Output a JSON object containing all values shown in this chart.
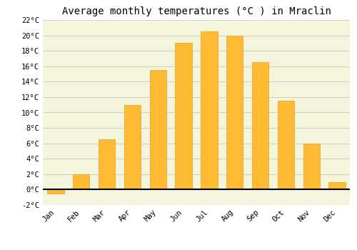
{
  "title": "Average monthly temperatures (°C ) in Mraclin",
  "months": [
    "Jan",
    "Feb",
    "Mar",
    "Apr",
    "May",
    "Jun",
    "Jul",
    "Aug",
    "Sep",
    "Oct",
    "Nov",
    "Dec"
  ],
  "values": [
    -0.5,
    2.0,
    6.5,
    11.0,
    15.5,
    19.0,
    20.5,
    20.0,
    16.5,
    11.5,
    6.0,
    1.0
  ],
  "bar_color": "#FFBB33",
  "bar_edge_color": "#E8A020",
  "ylim": [
    -2,
    22
  ],
  "yticks": [
    -2,
    0,
    2,
    4,
    6,
    8,
    10,
    12,
    14,
    16,
    18,
    20,
    22
  ],
  "ytick_labels": [
    "-2°C",
    "0°C",
    "2°C",
    "4°C",
    "6°C",
    "8°C",
    "10°C",
    "12°C",
    "14°C",
    "16°C",
    "18°C",
    "20°C",
    "22°C"
  ],
  "plot_bg_color": "#F5F5DC",
  "fig_bg_color": "#FFFFFF",
  "grid_color": "#CCCCCC",
  "title_fontsize": 10,
  "tick_fontsize": 7.5,
  "bar_width": 0.65
}
